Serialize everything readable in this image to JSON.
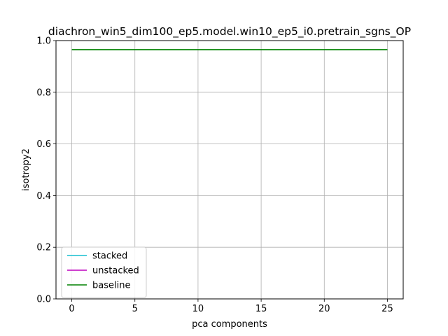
{
  "chart_data": {
    "type": "line",
    "title": "diachron_win5_dim100_ep5.model.win10_ep5_i0.pretrain_sgns_OP",
    "xlabel": "pca components",
    "ylabel": "isotropy2",
    "xlim": [
      -1.25,
      26.25
    ],
    "ylim": [
      0.0,
      1.0
    ],
    "xticks": [
      0,
      5,
      10,
      15,
      20,
      25
    ],
    "yticks": [
      0.0,
      0.2,
      0.4,
      0.6,
      0.8,
      1.0
    ],
    "xtick_labels": [
      "0",
      "5",
      "10",
      "15",
      "20",
      "25"
    ],
    "ytick_labels": [
      "0.0",
      "0.2",
      "0.4",
      "0.6",
      "0.8",
      "1.0"
    ],
    "grid": true,
    "legend_position": "lower-left",
    "series": [
      {
        "name": "stacked",
        "color": "#17becf",
        "x": [],
        "y": []
      },
      {
        "name": "unstacked",
        "color": "#bf00bf",
        "x": [],
        "y": []
      },
      {
        "name": "baseline",
        "color": "#008000",
        "x": [
          0,
          25
        ],
        "y": [
          0.965,
          0.965
        ]
      }
    ]
  }
}
